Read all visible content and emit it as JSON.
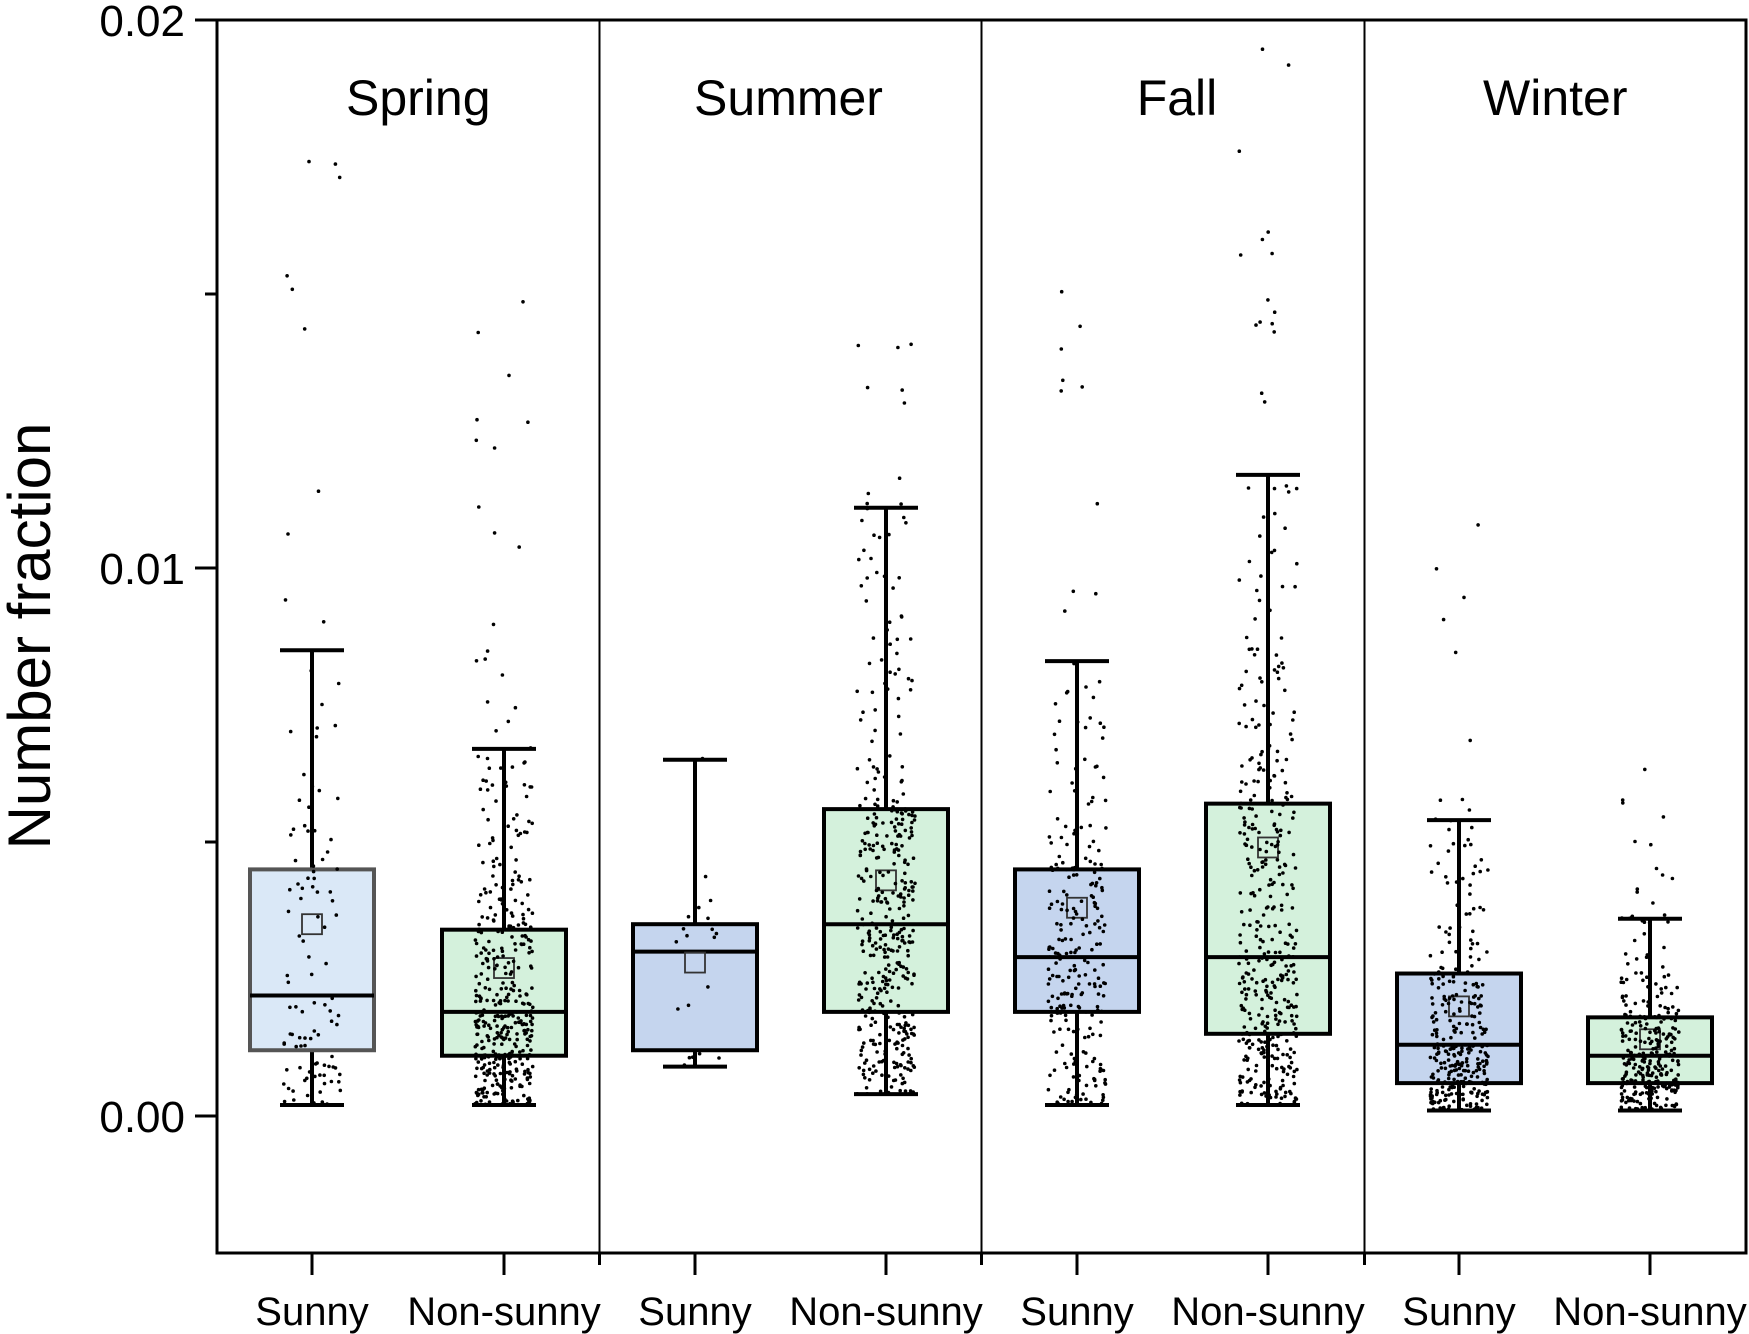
{
  "chart_data": {
    "type": "box",
    "title": "",
    "xlabel": "",
    "ylabel": "Number fraction",
    "ylim": [
      -0.0025,
      0.02
    ],
    "yticks": [
      "0.00",
      "0.01",
      "0.02"
    ],
    "seasons": [
      "Spring",
      "Summer",
      "Fall",
      "Winter"
    ],
    "categories": [
      "Sunny",
      "Non-sunny",
      "Sunny",
      "Non-sunny",
      "Sunny",
      "Non-sunny",
      "Sunny",
      "Non-sunny"
    ],
    "colors": {
      "light_blue": "#dae8f7",
      "blue": "#c5d5ee",
      "green": "#d4f1dc"
    },
    "boxes": [
      {
        "season": "Spring",
        "category": "Sunny",
        "fill": "#dae8f7",
        "whisker_low": 0.0002,
        "q1": 0.0012,
        "median": 0.0022,
        "q3": 0.0045,
        "whisker_high": 0.0085,
        "mean": 0.0035
      },
      {
        "season": "Spring",
        "category": "Non-sunny",
        "fill": "#d4f1dc",
        "whisker_low": 0.0002,
        "q1": 0.0011,
        "median": 0.0019,
        "q3": 0.0034,
        "whisker_high": 0.0067,
        "mean": 0.0027
      },
      {
        "season": "Summer",
        "category": "Sunny",
        "fill": "#c5d5ee",
        "whisker_low": 0.0009,
        "q1": 0.0012,
        "median": 0.003,
        "q3": 0.0035,
        "whisker_high": 0.0065,
        "mean": 0.0028
      },
      {
        "season": "Summer",
        "category": "Non-sunny",
        "fill": "#d4f1dc",
        "whisker_low": 0.0004,
        "q1": 0.0019,
        "median": 0.0035,
        "q3": 0.0056,
        "whisker_high": 0.0111,
        "mean": 0.0043
      },
      {
        "season": "Fall",
        "category": "Sunny",
        "fill": "#c5d5ee",
        "whisker_low": 0.0002,
        "q1": 0.0019,
        "median": 0.0029,
        "q3": 0.0045,
        "whisker_high": 0.0083,
        "mean": 0.0038
      },
      {
        "season": "Fall",
        "category": "Non-sunny",
        "fill": "#d4f1dc",
        "whisker_low": 0.0002,
        "q1": 0.0015,
        "median": 0.0029,
        "q3": 0.0057,
        "whisker_high": 0.0117,
        "mean": 0.0049
      },
      {
        "season": "Winter",
        "category": "Sunny",
        "fill": "#c5d5ee",
        "whisker_low": 0.0001,
        "q1": 0.0006,
        "median": 0.0013,
        "q3": 0.0026,
        "whisker_high": 0.0054,
        "mean": 0.002
      },
      {
        "season": "Winter",
        "category": "Non-sunny",
        "fill": "#d4f1dc",
        "whisker_low": 0.0001,
        "q1": 0.0006,
        "median": 0.0011,
        "q3": 0.0018,
        "whisker_high": 0.0036,
        "mean": 0.0014
      }
    ],
    "points_per_box": [
      110,
      420,
      20,
      420,
      260,
      420,
      320,
      300
    ],
    "outlier_range_high": [
      0.0181,
      0.0177,
      0.0066,
      0.015,
      0.0159,
      0.0199,
      0.0117,
      0.0066
    ],
    "grid": false,
    "legend": "none"
  }
}
